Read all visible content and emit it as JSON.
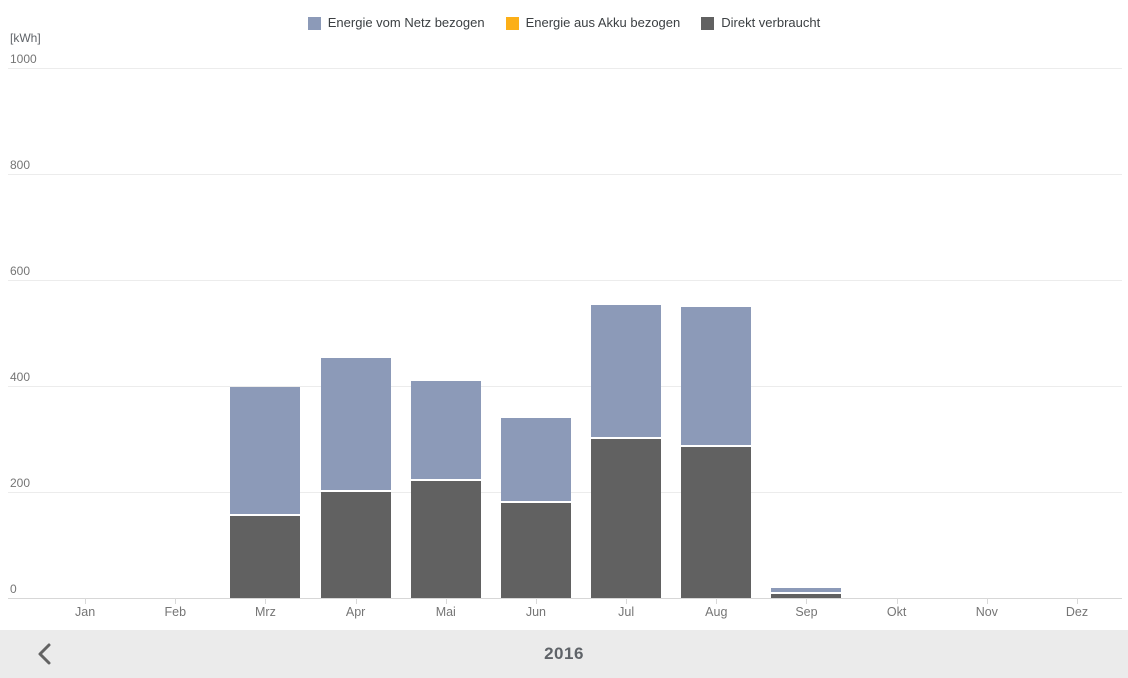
{
  "legend": [
    {
      "label": "Energie vom Netz bezogen",
      "color": "#8c9ab8"
    },
    {
      "label": "Energie aus Akku bezogen",
      "color": "#fcaf17"
    },
    {
      "label": "Direkt verbraucht",
      "color": "#616161"
    }
  ],
  "footer": {
    "year": "2016"
  },
  "chart_data": {
    "type": "bar",
    "stacked": true,
    "title": "",
    "ylabel": "[kWh]",
    "xlabel": "",
    "ylim": [
      0,
      1000
    ],
    "yticks": [
      0,
      200,
      400,
      600,
      800,
      1000
    ],
    "grid": true,
    "legend_position": "top",
    "categories": [
      "Jan",
      "Feb",
      "Mrz",
      "Apr",
      "Mai",
      "Jun",
      "Jul",
      "Aug",
      "Sep",
      "Okt",
      "Nov",
      "Dez"
    ],
    "series": [
      {
        "name": "Energie vom Netz bezogen",
        "color": "#8c9ab8",
        "values": [
          0,
          0,
          240,
          250,
          185,
          155,
          250,
          260,
          8,
          0,
          0,
          0
        ]
      },
      {
        "name": "Energie aus Akku bezogen",
        "color": "#fcaf17",
        "values": [
          0,
          0,
          0,
          0,
          0,
          0,
          0,
          0,
          0,
          0,
          0,
          0
        ]
      },
      {
        "name": "Direkt verbraucht",
        "color": "#616161",
        "values": [
          0,
          0,
          155,
          200,
          220,
          180,
          300,
          285,
          8,
          0,
          0,
          0
        ]
      }
    ]
  }
}
